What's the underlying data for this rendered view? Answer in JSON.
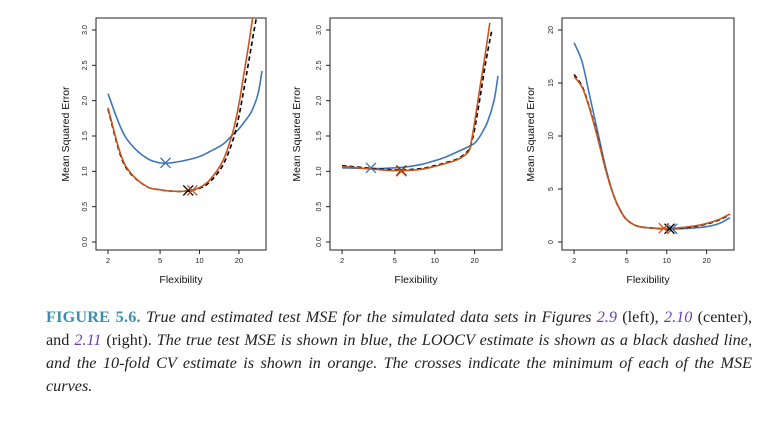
{
  "chart_data": [
    {
      "type": "line",
      "xlabel": "Flexibility",
      "ylabel": "Mean Squared Error",
      "xscale": "log",
      "xlim": [
        1.8,
        30
      ],
      "ylim": [
        0,
        3.0
      ],
      "xticks": [
        2,
        5,
        10,
        20
      ],
      "yticks": [
        0.0,
        0.5,
        1.0,
        1.5,
        2.0,
        2.5,
        3.0
      ],
      "ytick_labels": [
        "0.0",
        "0.5",
        "1.0",
        "1.5",
        "2.0",
        "2.5",
        "3.0"
      ],
      "series": [
        {
          "color": "#3f75b9",
          "style": "solid",
          "x": [
            2,
            2.5,
            3,
            4,
            5,
            6,
            8,
            10,
            12,
            15,
            18,
            20,
            22,
            25,
            28,
            30
          ],
          "y": [
            2.1,
            1.62,
            1.38,
            1.18,
            1.12,
            1.12,
            1.16,
            1.21,
            1.28,
            1.38,
            1.52,
            1.6,
            1.7,
            1.85,
            2.1,
            2.42
          ],
          "min": {
            "x": 5.5,
            "y": 1.12
          }
        },
        {
          "color": "#000000",
          "style": "dashed",
          "x": [
            2,
            2.5,
            3,
            4,
            5,
            6,
            8,
            10,
            12,
            15,
            18,
            20,
            22,
            24,
            26,
            28
          ],
          "y": [
            1.88,
            1.22,
            0.96,
            0.78,
            0.74,
            0.72,
            0.72,
            0.76,
            0.85,
            1.08,
            1.44,
            1.78,
            2.2,
            2.6,
            2.98,
            3.3
          ],
          "min": {
            "x": 8.2,
            "y": 0.73
          }
        },
        {
          "color": "#c8561c",
          "style": "solid",
          "x": [
            2,
            2.5,
            3,
            4,
            5,
            6,
            8,
            10,
            12,
            15,
            18,
            20,
            22,
            24,
            26
          ],
          "y": [
            1.9,
            1.24,
            0.97,
            0.78,
            0.74,
            0.72,
            0.72,
            0.77,
            0.88,
            1.14,
            1.56,
            1.95,
            2.42,
            2.85,
            3.3
          ],
          "min": {
            "x": 8.8,
            "y": 0.73
          }
        }
      ]
    },
    {
      "type": "line",
      "xlabel": "Flexibility",
      "ylabel": "Mean Squared Error",
      "xscale": "log",
      "xlim": [
        1.8,
        30
      ],
      "ylim": [
        0,
        3.0
      ],
      "xticks": [
        2,
        5,
        10,
        20
      ],
      "yticks": [
        0.0,
        0.5,
        1.0,
        1.5,
        2.0,
        2.5,
        3.0
      ],
      "ytick_labels": [
        "0.0",
        "0.5",
        "1.0",
        "1.5",
        "2.0",
        "2.5",
        "3.0"
      ],
      "series": [
        {
          "color": "#3f75b9",
          "style": "solid",
          "x": [
            2,
            3,
            4,
            5,
            6,
            8,
            10,
            12,
            15,
            18,
            20,
            22,
            25,
            28,
            30
          ],
          "y": [
            1.05,
            1.04,
            1.04,
            1.05,
            1.06,
            1.1,
            1.15,
            1.2,
            1.28,
            1.35,
            1.4,
            1.5,
            1.7,
            2.0,
            2.35
          ],
          "min": {
            "x": 3.3,
            "y": 1.05
          }
        },
        {
          "color": "#000000",
          "style": "dashed",
          "x": [
            2,
            3,
            4,
            5,
            6,
            8,
            10,
            12,
            15,
            18,
            19,
            20,
            22,
            24,
            26,
            27
          ],
          "y": [
            1.08,
            1.05,
            1.03,
            1.02,
            1.02,
            1.04,
            1.08,
            1.12,
            1.18,
            1.3,
            1.42,
            1.6,
            2.05,
            2.5,
            2.85,
            3.0
          ],
          "min": {
            "x": 5.6,
            "y": 1.01
          }
        },
        {
          "color": "#c8561c",
          "style": "solid",
          "x": [
            2,
            3,
            4,
            5,
            6,
            8,
            10,
            12,
            15,
            18,
            19,
            20,
            22,
            24,
            26
          ],
          "y": [
            1.07,
            1.04,
            1.02,
            1.01,
            1.01,
            1.03,
            1.07,
            1.11,
            1.17,
            1.28,
            1.45,
            1.7,
            2.2,
            2.65,
            3.1
          ],
          "min": {
            "x": 5.6,
            "y": 1.0
          }
        }
      ]
    },
    {
      "type": "line",
      "xlabel": "Flexibility",
      "ylabel": "Mean Squared Error",
      "xscale": "log",
      "xlim": [
        1.8,
        30
      ],
      "ylim": [
        0,
        20
      ],
      "xticks": [
        2,
        5,
        10,
        20
      ],
      "yticks": [
        0,
        5,
        10,
        15,
        20
      ],
      "ytick_labels": [
        "0",
        "5",
        "10",
        "15",
        "20"
      ],
      "series": [
        {
          "color": "#3f75b9",
          "style": "solid",
          "x": [
            2,
            2.3,
            2.6,
            3,
            3.5,
            4,
            4.5,
            5,
            6,
            8,
            10,
            12,
            15,
            20,
            25,
            30
          ],
          "y": [
            18.8,
            17.0,
            14.0,
            10.5,
            6.8,
            4.3,
            2.9,
            2.1,
            1.5,
            1.3,
            1.25,
            1.25,
            1.3,
            1.45,
            1.75,
            2.3
          ],
          "min": {
            "x": 11,
            "y": 1.25
          }
        },
        {
          "color": "#000000",
          "style": "dashed",
          "x": [
            2,
            2.3,
            2.6,
            3,
            3.5,
            4,
            4.5,
            5,
            6,
            8,
            10,
            12,
            15,
            20,
            25,
            30
          ],
          "y": [
            15.8,
            14.7,
            12.8,
            10.0,
            6.6,
            4.3,
            2.9,
            2.1,
            1.5,
            1.3,
            1.25,
            1.28,
            1.4,
            1.7,
            2.1,
            2.6
          ],
          "min": {
            "x": 10.5,
            "y": 1.25
          }
        },
        {
          "color": "#c8561c",
          "style": "solid",
          "x": [
            2,
            2.3,
            2.6,
            3,
            3.5,
            4,
            4.5,
            5,
            6,
            8,
            10,
            12,
            15,
            20,
            25,
            30
          ],
          "y": [
            15.6,
            14.6,
            12.7,
            9.9,
            6.6,
            4.3,
            2.9,
            2.1,
            1.5,
            1.3,
            1.28,
            1.32,
            1.45,
            1.75,
            2.15,
            2.65
          ],
          "min": {
            "x": 9.5,
            "y": 1.3
          }
        }
      ]
    }
  ],
  "caption": {
    "lead": "FIGURE 5.6.",
    "t1": "True and estimated test MSE for the simulated data sets in Figures",
    "ref1": "2.9",
    "p1": "(left),",
    "ref2": "2.10",
    "p2": "(center), and",
    "ref3": "2.11",
    "p3": "(right).",
    "t2": "The true test MSE is shown in blue, the LOOCV estimate is shown as a black dashed line, and the 10-fold CV estimate is shown in orange. The crosses indicate the minimum of each of the MSE curves."
  }
}
